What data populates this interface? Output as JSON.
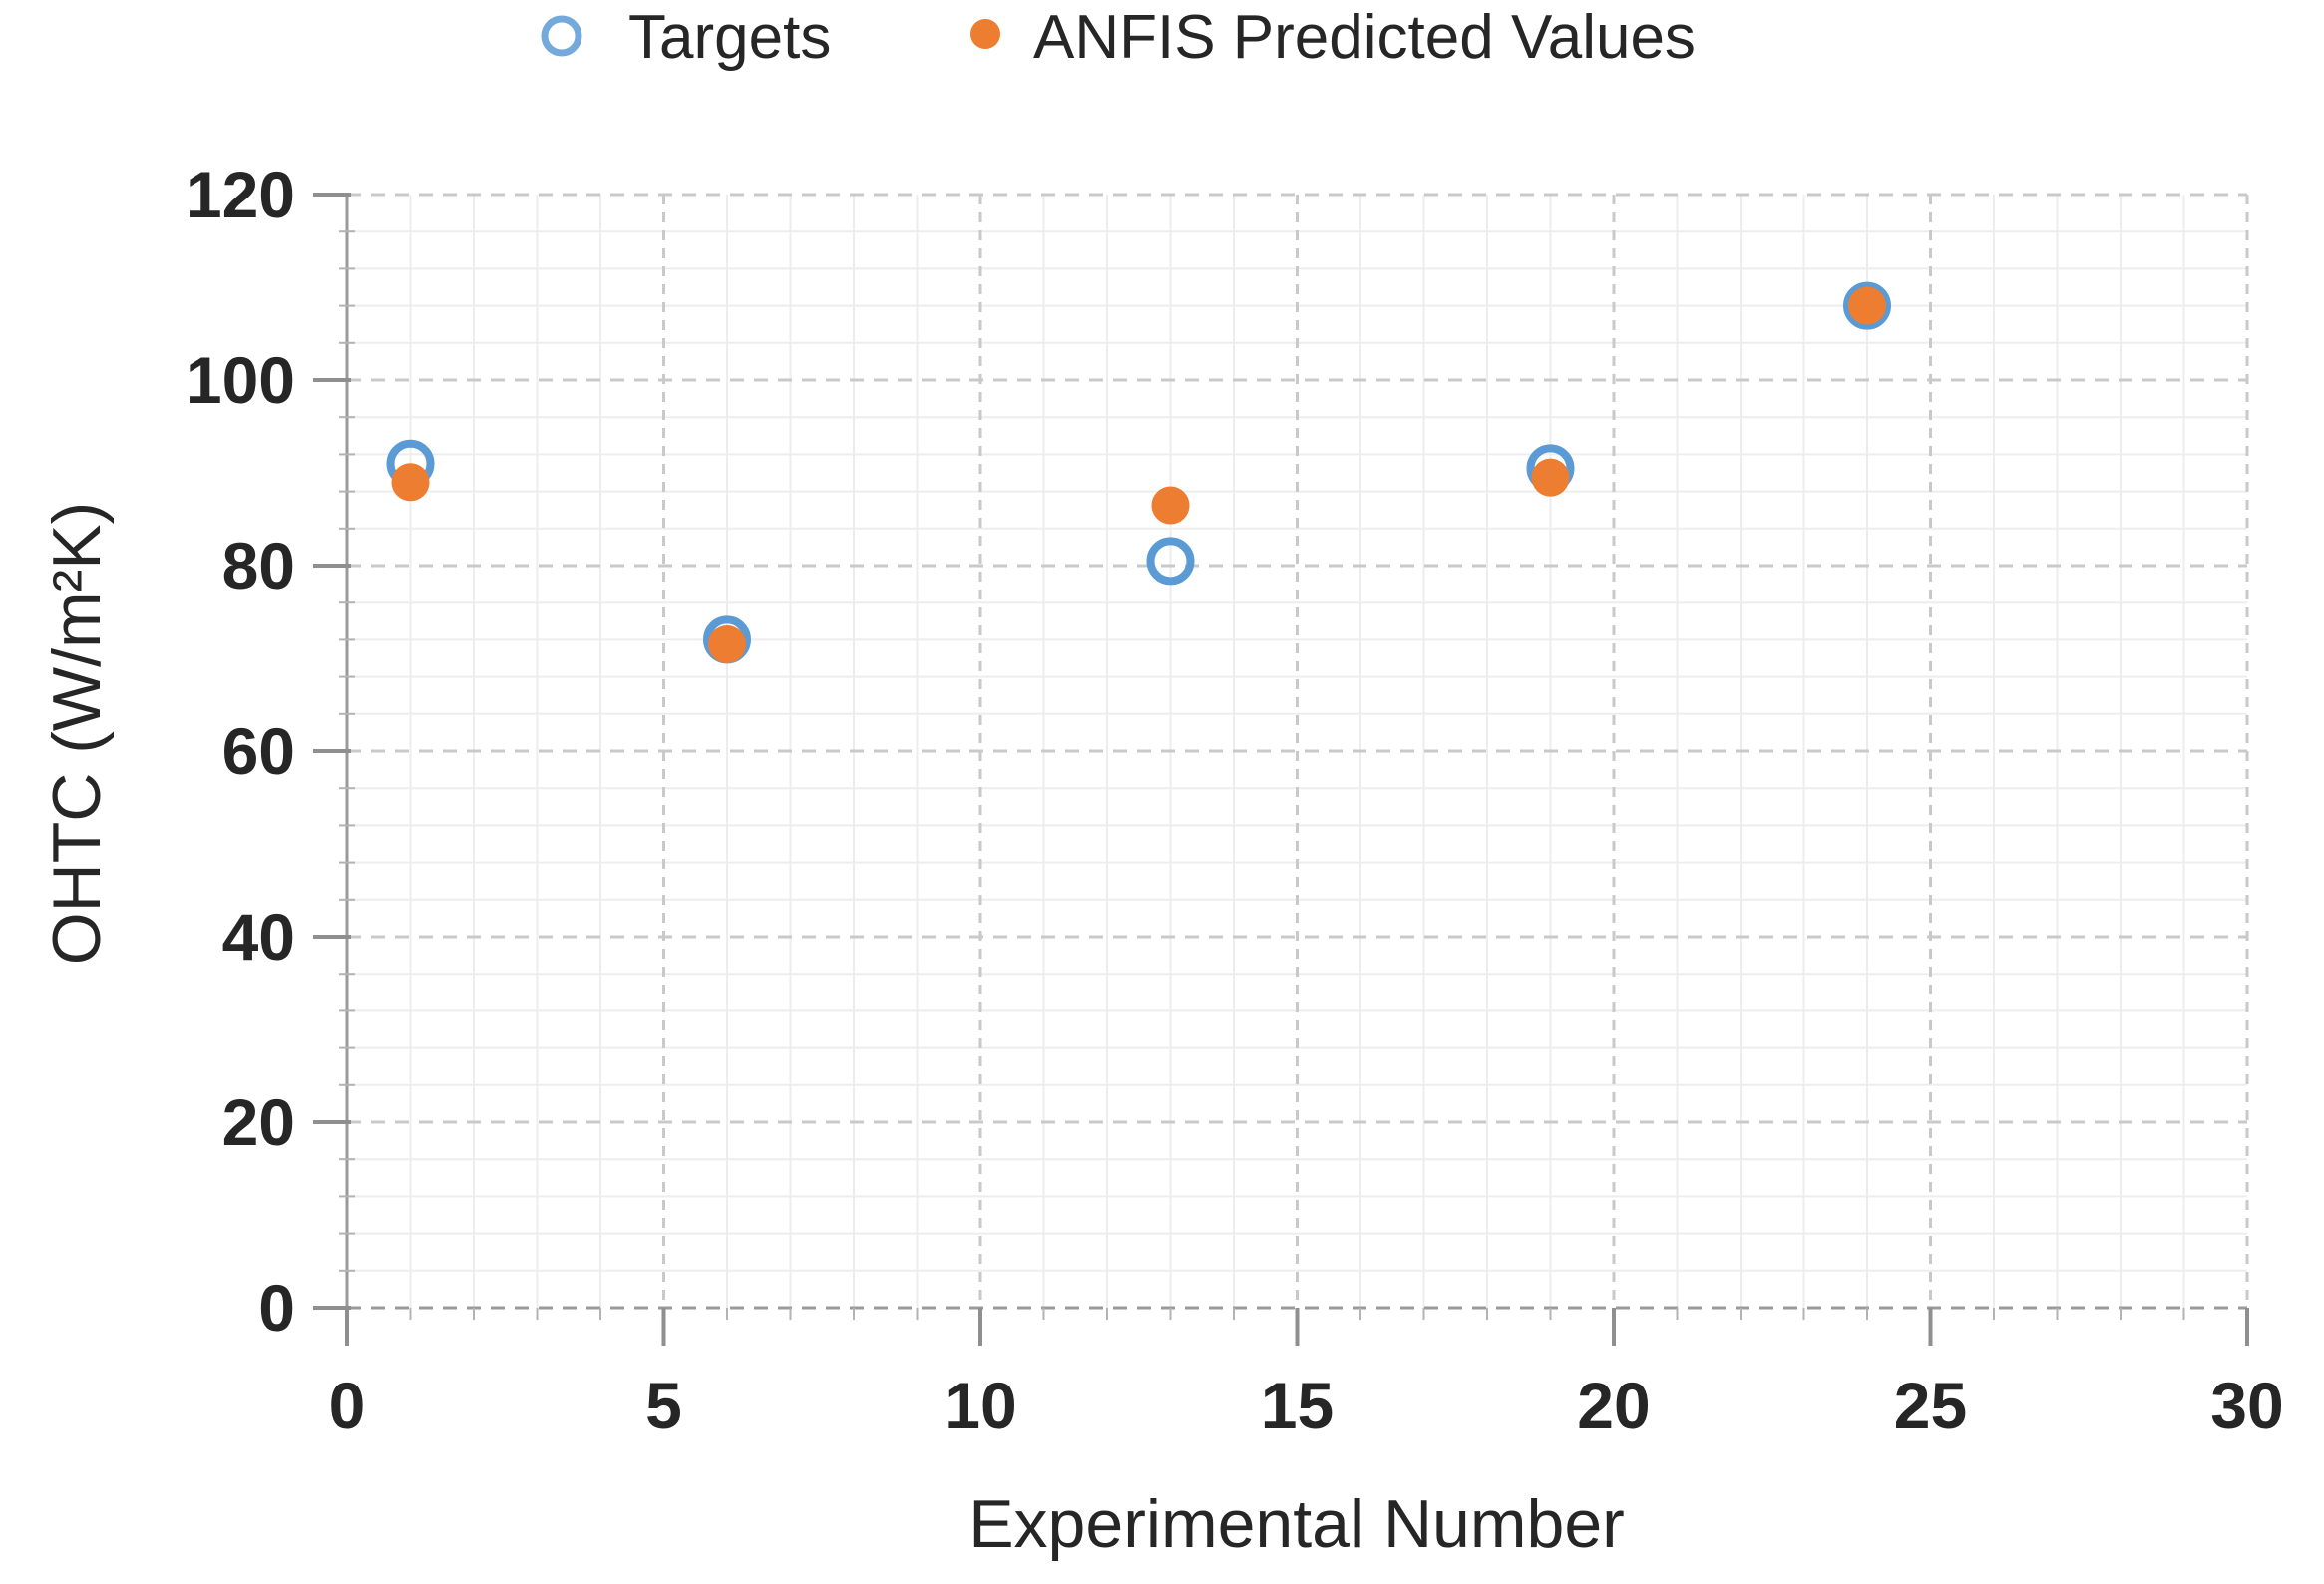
{
  "chart_data": {
    "type": "scatter",
    "title": "",
    "xlabel": "Experimental Number",
    "ylabel": "OHTC (W/m²K)",
    "xlim": [
      0,
      30
    ],
    "ylim": [
      0,
      120
    ],
    "x_ticks": [
      0,
      5,
      10,
      15,
      20,
      25,
      30
    ],
    "y_ticks": [
      0,
      20,
      40,
      60,
      80,
      100,
      120
    ],
    "x_minor_step": 1,
    "y_minor_step": 4,
    "grid": "major and minor gridlines on",
    "legend_position": "top",
    "series": [
      {
        "name": "Targets",
        "marker": "open-circle",
        "color": "#5B9BD5",
        "points": [
          [
            1,
            91
          ],
          [
            6,
            72
          ],
          [
            13,
            80.5
          ],
          [
            19,
            90.5
          ],
          [
            24,
            108
          ]
        ]
      },
      {
        "name": "ANFIS Predicted Values",
        "marker": "filled-circle",
        "color": "#ED7D31",
        "points": [
          [
            1,
            89
          ],
          [
            6,
            71.5
          ],
          [
            13,
            86.5
          ],
          [
            19,
            89.5
          ],
          [
            24,
            108
          ]
        ]
      }
    ]
  }
}
